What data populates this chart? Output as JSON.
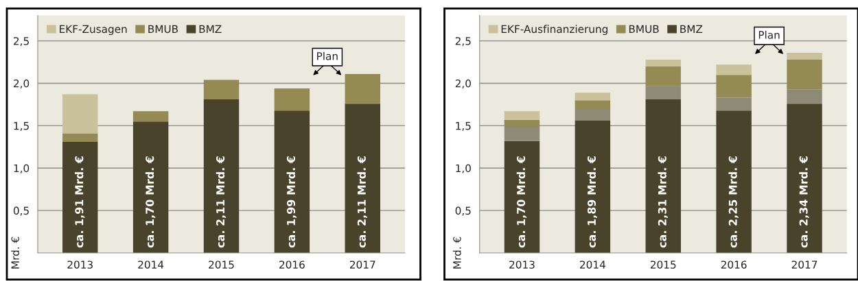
{
  "chart_data": [
    {
      "type": "bar",
      "stacked": true,
      "categories": [
        "2013",
        "2014",
        "2015",
        "2016",
        "2017"
      ],
      "series": [
        {
          "name": "BMZ",
          "color": "#4a432b",
          "values": [
            1.31,
            1.55,
            1.81,
            1.68,
            1.76
          ]
        },
        {
          "name": "BMUB",
          "color": "#948b54",
          "values": [
            0.1,
            0.12,
            0.23,
            0.26,
            0.35
          ]
        },
        {
          "name": "EKF-Zusagen",
          "color": "#c9c29a",
          "values": [
            0.46,
            null,
            null,
            null,
            null
          ]
        }
      ],
      "ylabel": "Mrd. €",
      "ylim": [
        0,
        2.8
      ],
      "yticks": [
        {
          "value": 0.5,
          "label": "0,5"
        },
        {
          "value": 1.0,
          "label": "1,0"
        },
        {
          "value": 1.5,
          "label": "1,5"
        },
        {
          "value": 2.0,
          "label": "2,0"
        },
        {
          "value": 2.5,
          "label": "2,5"
        }
      ],
      "grid": "y",
      "legend": "top left",
      "annotations": [
        "Plan",
        "ca. 1,91 Mrd. €",
        "ca. 1,70 Mrd. €",
        "ca. 2,11 Mrd. €",
        "ca. 1,99 Mrd. €",
        "ca. 2,11 Mrd. €"
      ]
    },
    {
      "type": "bar",
      "stacked": true,
      "categories": [
        "2013",
        "2014",
        "2015",
        "2016",
        "2017"
      ],
      "series": [
        {
          "name": "BMZ",
          "color": "#4a432b",
          "values": [
            1.32,
            1.56,
            1.81,
            1.68,
            1.76
          ]
        },
        {
          "color": "#8f8a76",
          "values": [
            0.16,
            0.13,
            0.16,
            0.15,
            0.17
          ]
        },
        {
          "name": "BMUB",
          "color": "#948b54",
          "values": [
            0.09,
            0.11,
            0.23,
            0.27,
            0.35
          ]
        },
        {
          "name": "EKF-Ausfinanzierung",
          "color": "#c9c29a",
          "values": [
            0.1,
            0.09,
            0.08,
            0.12,
            0.08
          ]
        }
      ],
      "ylabel": "Mrd. €",
      "ylim": [
        0,
        2.8
      ],
      "yticks": [
        {
          "value": 0.5,
          "label": "0,5"
        },
        {
          "value": 1.0,
          "label": "1,0"
        },
        {
          "value": 1.5,
          "label": "1,5"
        },
        {
          "value": 2.0,
          "label": "2,0"
        },
        {
          "value": 2.5,
          "label": "2,5"
        }
      ],
      "grid": "y",
      "legend": "top left",
      "annotations": [
        "Plan",
        "ca. 1,70 Mrd. €",
        "ca. 1,89 Mrd. €",
        "ca. 2,31 Mrd. €",
        "ca. 2,25 Mrd. €",
        "ca. 2,34 Mrd. €"
      ]
    }
  ]
}
